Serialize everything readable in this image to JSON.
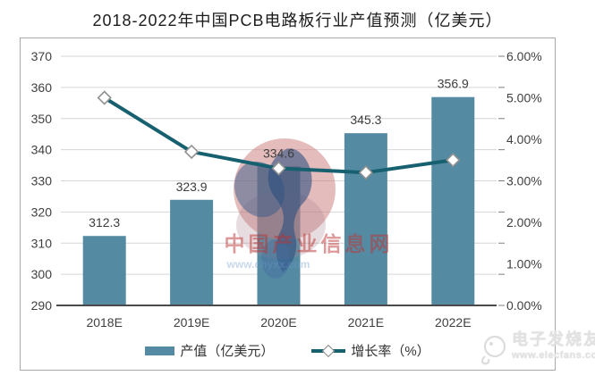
{
  "title": "2018-2022年中国PCB电路板行业产值预测（亿美元）",
  "chart_data": {
    "type": "bar",
    "subtype": "bar-line-combo",
    "categories": [
      "2018E",
      "2019E",
      "2020E",
      "2021E",
      "2022E"
    ],
    "series": [
      {
        "name": "产值（亿美元）",
        "type": "bar",
        "axis": "left",
        "values": [
          312.3,
          323.9,
          334.6,
          345.3,
          356.9
        ],
        "color": "#548BA3"
      },
      {
        "name": "增长率（%）",
        "type": "line",
        "axis": "right",
        "values": [
          5.0,
          3.7,
          3.3,
          3.2,
          3.5
        ],
        "color": "#17606F",
        "marker": "white-diamond"
      }
    ],
    "bar_value_labels": [
      "312.3",
      "323.9",
      "334.6",
      "345.3",
      "356.9"
    ],
    "left_axis": {
      "min": 290,
      "max": 370,
      "step": 10,
      "tick_labels": [
        "290",
        "300",
        "310",
        "320",
        "330",
        "340",
        "350",
        "360",
        "370"
      ]
    },
    "right_axis": {
      "min": 0,
      "max": 6,
      "step": 1,
      "tick_labels": [
        "0.00%",
        "1.00%",
        "2.00%",
        "3.00%",
        "4.00%",
        "5.00%",
        "6.00%"
      ]
    },
    "grid": true,
    "legend_position": "bottom"
  },
  "watermarks": {
    "center_text": "中国产业信息网",
    "center_url": "www.chyxx.com",
    "corner_name": "电子发烧友",
    "corner_url": "www.elecfans.com"
  },
  "colors": {
    "bar": "#548BA3",
    "line": "#17606F",
    "grid": "#D6D6D6",
    "axis_line": "#4A4A4A",
    "tick": "#7F7F7F",
    "text": "#3F3F3F",
    "data_label": "#3D3D3D",
    "frame": "#A8A8A8",
    "marker_stroke": "#919191",
    "wm_pink": "rgba(203,122,122,0.50)",
    "wm_pink_soft": "rgba(170,130,140,0.28)",
    "wm_blue_dark": "rgba(42,77,126,0.58)",
    "wm_blue_mid": "rgba(56,92,138,0.50)",
    "wm_blue_soft": "rgba(70,110,160,0.42)",
    "wm_red_text": "rgba(187,52,52,0.50)",
    "wm_url_text": "rgba(110,150,200,0.38)"
  }
}
